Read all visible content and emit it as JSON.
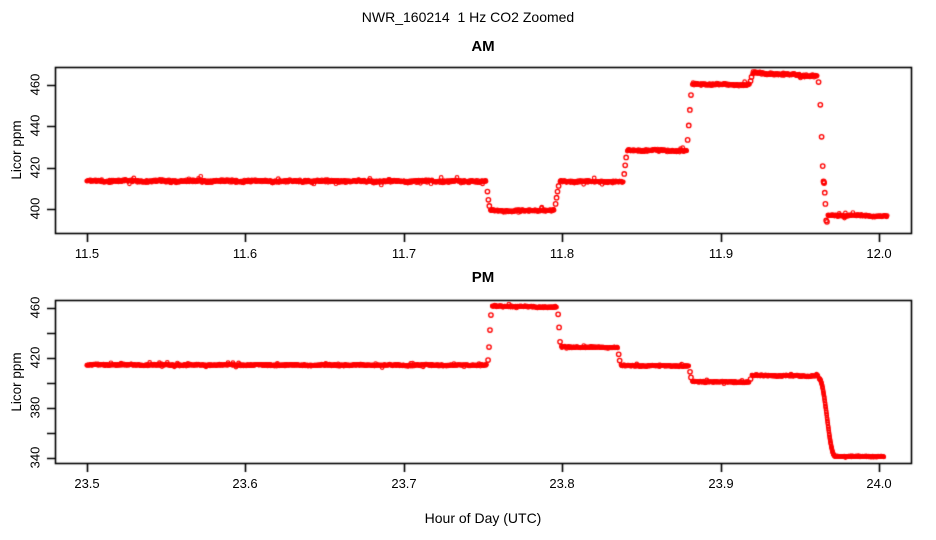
{
  "page": {
    "title": "NWR_160214  1 Hz CO2 Zoomed",
    "xlabel": "Hour of Day (UTC)",
    "point_color": "#ff0000",
    "background": "#ffffff"
  },
  "chart_data": [
    {
      "type": "scatter",
      "title": "AM",
      "ylabel": "Licor ppm",
      "marker": "open-circle",
      "color": "#ff0000",
      "grid": false,
      "xlim": [
        11.48,
        12.02
      ],
      "ylim": [
        388.4,
        468.8
      ],
      "xticks": [
        11.5,
        11.6,
        11.7,
        11.8,
        11.9,
        12.0
      ],
      "xtick_labels": [
        "11.5",
        "11.6",
        "11.7",
        "11.8",
        "11.9",
        "12.0"
      ],
      "yticks": [
        400,
        420,
        440,
        460
      ],
      "ytick_labels": [
        "400",
        "420",
        "440",
        "460"
      ],
      "segments": [
        {
          "kind": "plateau",
          "x0": 11.5,
          "x1": 11.752,
          "y0": 413.6,
          "y1": 413.4,
          "noise": 0.7
        },
        {
          "kind": "points",
          "pts": [
            [
              11.7528,
              408.5
            ],
            [
              11.7534,
              404.5
            ],
            [
              11.754,
              401.5
            ]
          ]
        },
        {
          "kind": "plateau",
          "x0": 11.7546,
          "x1": 11.795,
          "y0": 399.0,
          "y1": 399.4,
          "noise": 0.6
        },
        {
          "kind": "points",
          "pts": [
            [
              11.7958,
              402.5
            ],
            [
              11.7964,
              405.5
            ],
            [
              11.797,
              408.5
            ],
            [
              11.7977,
              411.2
            ]
          ]
        },
        {
          "kind": "plateau",
          "x0": 11.7985,
          "x1": 11.8385,
          "y0": 413.4,
          "y1": 413.2,
          "noise": 0.6
        },
        {
          "kind": "points",
          "pts": [
            [
              11.8391,
              417.0
            ],
            [
              11.8397,
              421.2
            ],
            [
              11.8403,
              425.0
            ]
          ]
        },
        {
          "kind": "plateau",
          "x0": 11.841,
          "x1": 11.8785,
          "y0": 428.5,
          "y1": 428.2,
          "noise": 0.6
        },
        {
          "kind": "points",
          "pts": [
            [
              11.8791,
              433.5
            ],
            [
              11.8798,
              440.5
            ],
            [
              11.8805,
              448.0
            ],
            [
              11.8812,
              455.2
            ]
          ]
        },
        {
          "kind": "plateau",
          "x0": 11.882,
          "x1": 11.9183,
          "y0": 460.5,
          "y1": 460.2,
          "noise": 0.6
        },
        {
          "kind": "points",
          "pts": [
            [
              11.9188,
              462.0
            ],
            [
              11.9194,
              464.0
            ]
          ]
        },
        {
          "kind": "plateau",
          "x0": 11.92,
          "x1": 11.961,
          "y0": 466.0,
          "y1": 464.4,
          "noise": 0.7
        },
        {
          "kind": "points",
          "pts": [
            [
              11.9617,
              461.5
            ],
            [
              11.9628,
              450.5
            ],
            [
              11.9636,
              435.0
            ],
            [
              11.9643,
              420.8
            ],
            [
              11.9648,
              413.4
            ],
            [
              11.965,
              413.0
            ],
            [
              11.9652,
              412.6
            ],
            [
              11.9656,
              407.9
            ],
            [
              11.966,
              402.5
            ],
            [
              11.9665,
              394.5
            ],
            [
              11.967,
              393.8
            ]
          ]
        },
        {
          "kind": "plateau",
          "x0": 11.9675,
          "x1": 12.005,
          "y0": 396.9,
          "y1": 396.6,
          "noise": 0.55
        }
      ]
    },
    {
      "type": "scatter",
      "title": "PM",
      "ylabel": "Licor ppm",
      "marker": "open-circle",
      "color": "#ff0000",
      "grid": false,
      "xlim": [
        23.48,
        24.02
      ],
      "ylim": [
        336.0,
        466.4
      ],
      "xticks": [
        23.5,
        23.6,
        23.7,
        23.8,
        23.9,
        24.0
      ],
      "xtick_labels": [
        "23.5",
        "23.6",
        "23.7",
        "23.8",
        "23.9",
        "24.0"
      ],
      "yticks": [
        340,
        360,
        380,
        400,
        420,
        440,
        460
      ],
      "ytick_labels": [
        "340",
        "",
        "380",
        "",
        "420",
        "",
        "460"
      ],
      "segments": [
        {
          "kind": "plateau",
          "x0": 23.5,
          "x1": 23.7525,
          "y0": 414.5,
          "y1": 414.2,
          "noise": 0.7
        },
        {
          "kind": "points",
          "pts": [
            [
              23.7532,
              418.4
            ],
            [
              23.7538,
              428.8
            ],
            [
              23.7544,
              442.4
            ],
            [
              23.755,
              454.4
            ]
          ]
        },
        {
          "kind": "plateau",
          "x0": 23.7558,
          "x1": 23.7966,
          "y0": 461.5,
          "y1": 460.6,
          "noise": 0.7
        },
        {
          "kind": "points",
          "pts": [
            [
              23.7974,
              455.0
            ],
            [
              23.798,
              444.5
            ],
            [
              23.7986,
              433.0
            ]
          ]
        },
        {
          "kind": "plateau",
          "x0": 23.7994,
          "x1": 23.835,
          "y0": 428.8,
          "y1": 428.3,
          "noise": 0.6
        },
        {
          "kind": "points",
          "pts": [
            [
              23.8356,
              423.0
            ],
            [
              23.8362,
              418.0
            ]
          ]
        },
        {
          "kind": "plateau",
          "x0": 23.837,
          "x1": 23.88,
          "y0": 413.9,
          "y1": 413.6,
          "noise": 0.6
        },
        {
          "kind": "points",
          "pts": [
            [
              23.8806,
              409.0
            ],
            [
              23.8812,
              404.5
            ]
          ]
        },
        {
          "kind": "plateau",
          "x0": 23.882,
          "x1": 23.918,
          "y0": 401.0,
          "y1": 400.7,
          "noise": 0.6
        },
        {
          "kind": "points",
          "pts": [
            [
              23.9188,
              403.2
            ]
          ]
        },
        {
          "kind": "plateau",
          "x0": 23.9196,
          "x1": 23.9615,
          "y0": 406.0,
          "y1": 405.6,
          "noise": 0.6
        },
        {
          "kind": "smooth",
          "x0": 23.962,
          "x1": 23.972,
          "y0": 403.5,
          "y1": 341.6,
          "noise": 0.3
        },
        {
          "kind": "plateau",
          "x0": 23.972,
          "x1": 24.003,
          "y0": 341.4,
          "y1": 341.1,
          "noise": 0.5
        }
      ]
    }
  ]
}
